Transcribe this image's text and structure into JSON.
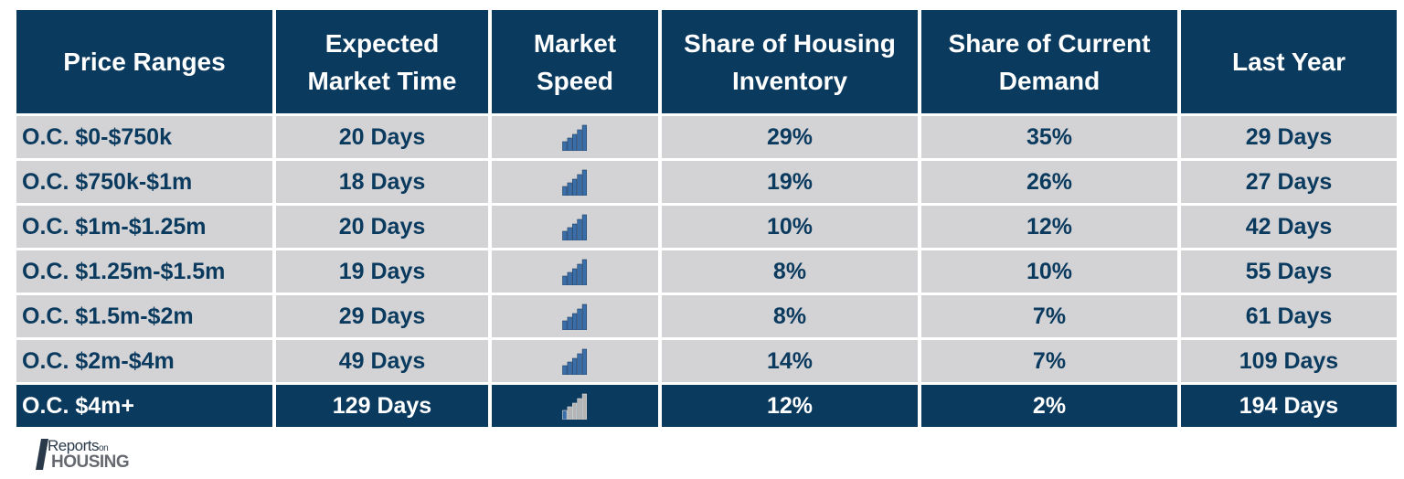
{
  "table": {
    "headers": [
      "Price Ranges",
      "Expected Market Time",
      "Market Speed",
      "Share of Housing Inventory",
      "Share of Current Demand",
      "Last Year"
    ],
    "rows": [
      {
        "range": "O.C. $0-$750k",
        "market_time": "20 Days",
        "speed_icon": "bar-chart-icon",
        "inventory_share": "29%",
        "demand_share": "35%",
        "last_year": "29 Days",
        "bars_filled": 5
      },
      {
        "range": "O.C. $750k-$1m",
        "market_time": "18 Days",
        "speed_icon": "bar-chart-icon",
        "inventory_share": "19%",
        "demand_share": "26%",
        "last_year": "27 Days",
        "bars_filled": 5
      },
      {
        "range": "O.C. $1m-$1.25m",
        "market_time": "20 Days",
        "speed_icon": "bar-chart-icon",
        "inventory_share": "10%",
        "demand_share": "12%",
        "last_year": "42 Days",
        "bars_filled": 5
      },
      {
        "range": "O.C. $1.25m-$1.5m",
        "market_time": "19 Days",
        "speed_icon": "bar-chart-icon",
        "inventory_share": "8%",
        "demand_share": "10%",
        "last_year": "55 Days",
        "bars_filled": 5
      },
      {
        "range": "O.C. $1.5m-$2m",
        "market_time": "29 Days",
        "speed_icon": "bar-chart-icon",
        "inventory_share": "8%",
        "demand_share": "7%",
        "last_year": "61 Days",
        "bars_filled": 5
      },
      {
        "range": "O.C. $2m-$4m",
        "market_time": "49 Days",
        "speed_icon": "bar-chart-icon",
        "inventory_share": "14%",
        "demand_share": "7%",
        "last_year": "109 Days",
        "bars_filled": 5
      },
      {
        "range": "O.C. $4m+",
        "market_time": "129 Days",
        "speed_icon": "bar-chart-icon",
        "inventory_share": "12%",
        "demand_share": "2%",
        "last_year": "194 Days",
        "bars_filled": 1,
        "highlighted": true
      }
    ]
  },
  "logo": {
    "line1_main": "Reports",
    "line1_small": "on",
    "line2": "HOUSING"
  },
  "colors": {
    "header_bg": "#0b3a5f",
    "row_bg": "#d3d3d5",
    "text_dark": "#0b3a5f",
    "bar_filled": "#3a6ea8",
    "bar_empty": "#9a9a9a"
  }
}
